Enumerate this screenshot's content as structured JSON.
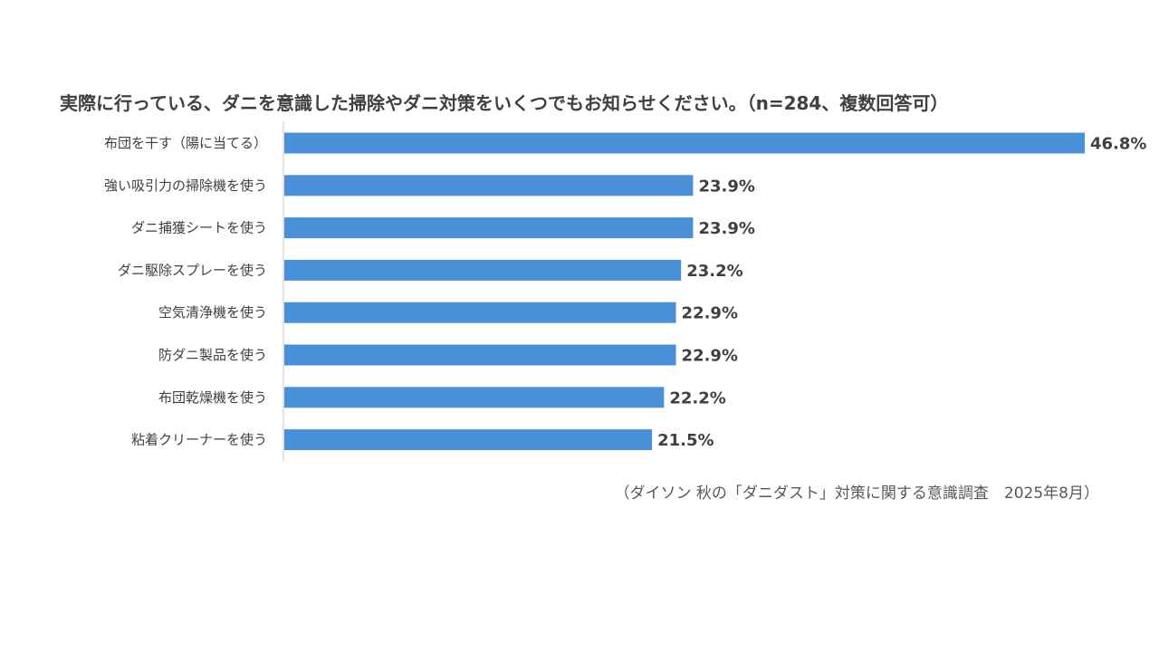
{
  "chart_data": {
    "type": "bar",
    "orientation": "horizontal",
    "title": "実際に行っている、ダニを意識した掃除やダニ対策をいくつでもお知らせください。（n=284、複数回答可）",
    "categories": [
      "布団を干す（陽に当てる）",
      "強い吸引力の掃除機を使う",
      "ダニ捕獲シートを使う",
      "ダニ駆除スプレーを使う",
      "空気清浄機を使う",
      "防ダニ製品を使う",
      "布団乾燥機を使う",
      "粘着クリーナーを使う"
    ],
    "values": [
      46.8,
      23.9,
      23.9,
      23.2,
      22.9,
      22.9,
      22.2,
      21.5
    ],
    "data_labels": [
      "46.8%",
      "23.9%",
      "23.9%",
      "23.2%",
      "22.9%",
      "22.9%",
      "22.2%",
      "21.5%"
    ],
    "unit": "%",
    "xlim": [
      0,
      46.8
    ],
    "grid": false,
    "legend": "none",
    "bar_color": "#4A90D9",
    "source": "（ダイソン 秋の「ダニダスト」対策に関する意識調査　2025年8月）"
  }
}
